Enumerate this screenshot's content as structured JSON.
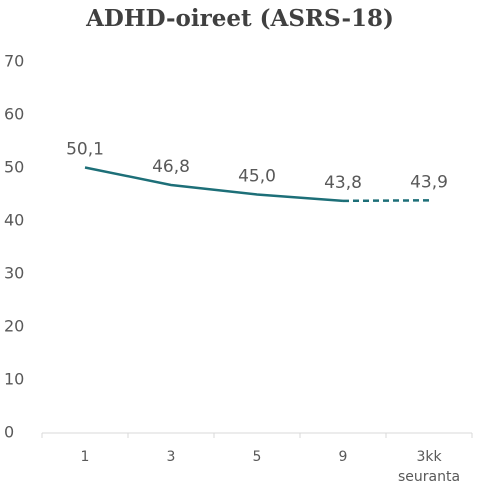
{
  "chart_data": {
    "type": "line",
    "title": "ADHD-oireet (ASRS-18)",
    "categories": [
      "1",
      "3",
      "5",
      "9",
      "3kk seuranta"
    ],
    "series": [
      {
        "color": "#1d6f78",
        "values": [
          50.1,
          46.8,
          45.0,
          43.8,
          43.9
        ],
        "value_labels": [
          "50,1",
          "46,8",
          "45,0",
          "43,8",
          "43,9"
        ],
        "segment_styles": [
          "solid",
          "solid",
          "solid",
          "dashed"
        ]
      }
    ],
    "ylim": [
      0,
      70
    ],
    "yticks": [
      0,
      10,
      20,
      30,
      40,
      50,
      60,
      70
    ],
    "grid": false
  }
}
